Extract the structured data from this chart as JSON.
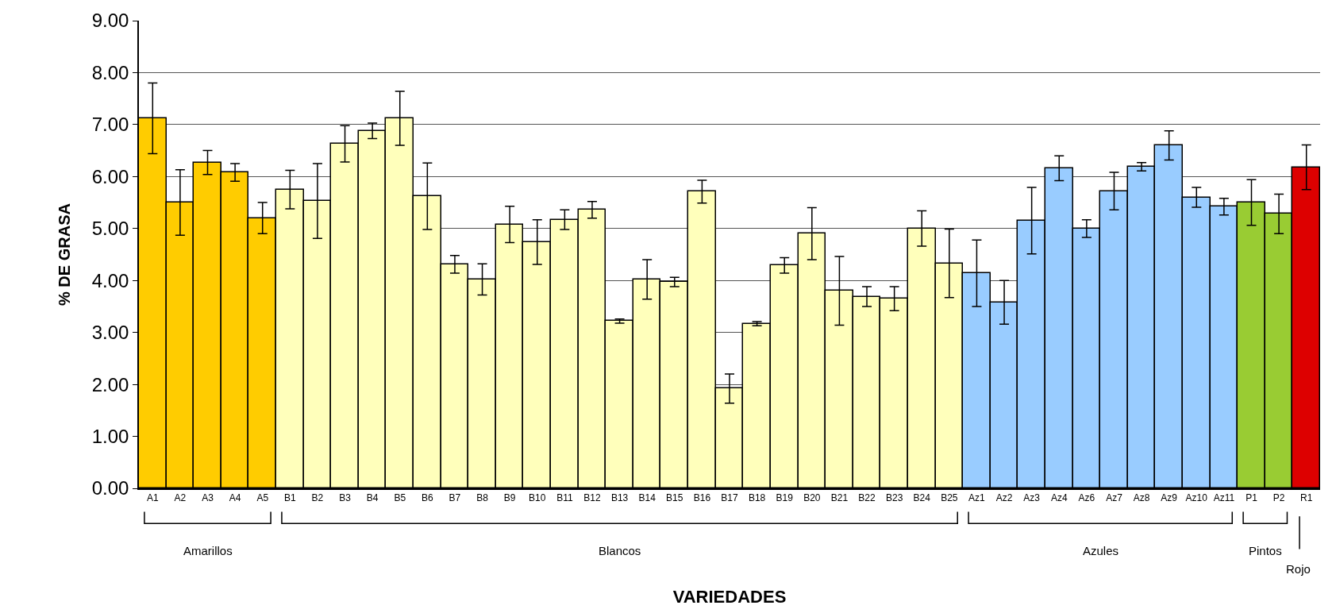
{
  "chart_data": {
    "type": "bar",
    "xlabel": "VARIEDADES",
    "ylabel": "% DE GRASA",
    "categories": [
      "A1",
      "A2",
      "A3",
      "A4",
      "A5",
      "B1",
      "B2",
      "B3",
      "B4",
      "B5",
      "B6",
      "B7",
      "B8",
      "B9",
      "B10",
      "B11",
      "B12",
      "B13",
      "B14",
      "B15",
      "B16",
      "B17",
      "B18",
      "B19",
      "B20",
      "B21",
      "B22",
      "B23",
      "B24",
      "B25",
      "Az1",
      "Az2",
      "Az3",
      "Az4",
      "Az6",
      "Az7",
      "Az8",
      "Az9",
      "Az10",
      "Az11",
      "P1",
      "P2",
      "R1"
    ],
    "values": [
      7.12,
      5.5,
      6.27,
      6.08,
      5.2,
      5.75,
      5.53,
      6.63,
      6.88,
      7.12,
      5.62,
      4.31,
      4.02,
      5.08,
      4.74,
      5.17,
      5.36,
      3.22,
      4.02,
      3.97,
      5.71,
      1.92,
      3.17,
      4.29,
      4.9,
      3.8,
      3.69,
      3.65,
      5.0,
      4.33,
      4.14,
      3.58,
      5.15,
      6.16,
      5.0,
      5.72,
      6.19,
      6.6,
      5.6,
      5.42,
      5.5,
      5.28,
      6.18
    ],
    "errors": [
      0.68,
      0.63,
      0.23,
      0.17,
      0.3,
      0.37,
      0.72,
      0.35,
      0.15,
      0.52,
      0.64,
      0.17,
      0.3,
      0.35,
      0.43,
      0.19,
      0.16,
      0.04,
      0.38,
      0.09,
      0.22,
      0.28,
      0.04,
      0.15,
      0.5,
      0.66,
      0.19,
      0.23,
      0.34,
      0.66,
      0.64,
      0.42,
      0.64,
      0.24,
      0.17,
      0.36,
      0.08,
      0.28,
      0.19,
      0.16,
      0.44,
      0.38,
      0.43
    ],
    "colors": [
      "#ffcc00",
      "#ffcc00",
      "#ffcc00",
      "#ffcc00",
      "#ffcc00",
      "#ffffbb",
      "#ffffbb",
      "#ffffbb",
      "#ffffbb",
      "#ffffbb",
      "#ffffbb",
      "#ffffbb",
      "#ffffbb",
      "#ffffbb",
      "#ffffbb",
      "#ffffbb",
      "#ffffbb",
      "#ffffbb",
      "#ffffbb",
      "#ffffbb",
      "#ffffbb",
      "#ffffbb",
      "#ffffbb",
      "#ffffbb",
      "#ffffbb",
      "#ffffbb",
      "#ffffbb",
      "#ffffbb",
      "#ffffbb",
      "#ffffbb",
      "#99ccff",
      "#99ccff",
      "#99ccff",
      "#99ccff",
      "#99ccff",
      "#99ccff",
      "#99ccff",
      "#99ccff",
      "#99ccff",
      "#99ccff",
      "#99cc33",
      "#99cc33",
      "#dd0000"
    ],
    "ylim": [
      0,
      9
    ],
    "yticks": [
      {
        "value": 0,
        "label": "0.00"
      },
      {
        "value": 1,
        "label": "1.00"
      },
      {
        "value": 2,
        "label": "2.00"
      },
      {
        "value": 3,
        "label": "3.00"
      },
      {
        "value": 4,
        "label": "4.00"
      },
      {
        "value": 5,
        "label": "5.00"
      },
      {
        "value": 6,
        "label": "6.00"
      },
      {
        "value": 7,
        "label": "7.00"
      },
      {
        "value": 8,
        "label": "8.00"
      },
      {
        "value": 9,
        "label": "9.00"
      }
    ],
    "grid": "y",
    "annotations": [
      "Amarillos",
      "Blancos",
      "Azules",
      "Pintos",
      "Rojo"
    ]
  }
}
